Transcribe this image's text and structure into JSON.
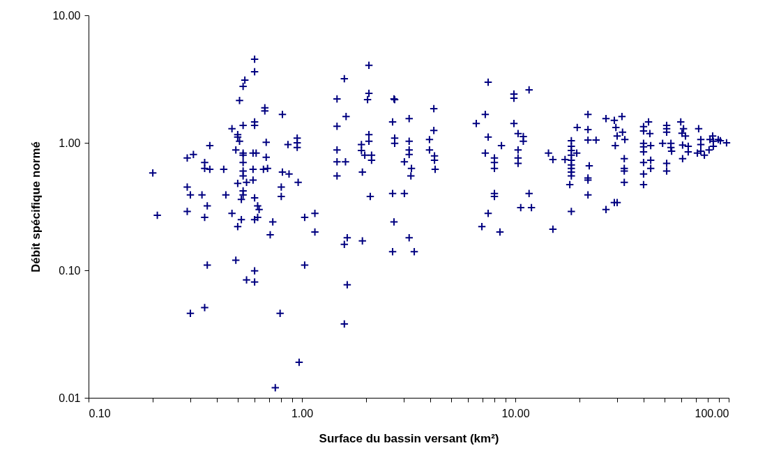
{
  "chart_data": {
    "type": "scatter",
    "xlabel": "Surface du bassin versant (km²)",
    "ylabel": "Débit spécifique normé",
    "log": "xy",
    "grid": false,
    "marker": "cross",
    "legend": false,
    "xlim": [
      0.1,
      100
    ],
    "ylim": [
      0.01,
      10
    ],
    "xticks": [
      {
        "value": 0.1,
        "label": "0.10"
      },
      {
        "value": 0.2,
        "label": null
      },
      {
        "value": 0.3,
        "label": null
      },
      {
        "value": 0.4,
        "label": null
      },
      {
        "value": 0.5,
        "label": null
      },
      {
        "value": 0.6,
        "label": null
      },
      {
        "value": 0.7,
        "label": null
      },
      {
        "value": 0.8,
        "label": null
      },
      {
        "value": 0.9,
        "label": null
      },
      {
        "value": 1,
        "label": "1.00"
      },
      {
        "value": 2,
        "label": null
      },
      {
        "value": 3,
        "label": null
      },
      {
        "value": 4,
        "label": null
      },
      {
        "value": 5,
        "label": null
      },
      {
        "value": 6,
        "label": null
      },
      {
        "value": 7,
        "label": null
      },
      {
        "value": 8,
        "label": null
      },
      {
        "value": 9,
        "label": null
      },
      {
        "value": 10,
        "label": "10.00"
      },
      {
        "value": 20,
        "label": null
      },
      {
        "value": 30,
        "label": null
      },
      {
        "value": 40,
        "label": null
      },
      {
        "value": 50,
        "label": null
      },
      {
        "value": 60,
        "label": null
      },
      {
        "value": 70,
        "label": null
      },
      {
        "value": 80,
        "label": null
      },
      {
        "value": 90,
        "label": null
      },
      {
        "value": 100,
        "label": "100.00"
      }
    ],
    "yticks": [
      {
        "value": 0.01,
        "label": "0.01"
      },
      {
        "value": 0.1,
        "label": "0.10"
      },
      {
        "value": 1,
        "label": "1.00"
      },
      {
        "value": 10,
        "label": "10.00"
      }
    ],
    "series": [
      {
        "color": "#000080",
        "x": [
          0.6,
          0.6,
          0.54,
          0.53,
          0.51,
          0.67,
          0.67,
          0.81,
          0.6,
          0.6,
          0.53,
          0.47,
          0.5,
          0.5,
          0.51,
          0.68,
          0.86,
          0.95,
          0.95,
          0.95,
          0.37,
          0.49,
          0.53,
          0.53,
          0.59,
          0.61,
          0.68,
          0.29,
          0.31,
          0.35,
          0.35,
          0.37,
          0.43,
          0.53,
          0.53,
          0.53,
          0.59,
          0.66,
          0.69,
          0.81,
          0.87,
          0.96,
          0.2,
          0.59,
          0.5,
          0.55,
          0.53,
          0.29,
          0.3,
          0.34,
          0.44,
          0.53,
          0.52,
          0.6,
          0.8,
          0.8,
          0.36,
          0.62,
          0.63,
          0.29,
          0.21,
          0.35,
          0.47,
          0.52,
          0.6,
          0.62,
          0.5,
          0.73,
          0.71,
          1.03,
          1.15,
          1.15,
          0.36,
          0.49,
          0.6,
          0.55,
          0.6,
          1.03,
          0.3,
          0.35,
          0.79,
          0.97,
          0.75,
          2.06,
          1.58,
          7.46,
          11.6,
          2.06,
          9.85,
          9.85,
          1.46,
          2.03,
          2.7,
          2.72,
          4.15,
          7.23,
          1.61,
          3.18,
          2.66,
          6.56,
          9.85,
          1.46,
          4.15,
          2.06,
          2.06,
          2.72,
          2.72,
          3.18,
          3.96,
          7.46,
          10.3,
          10.9,
          10.9,
          8.61,
          1.9,
          1.9,
          1.46,
          3.18,
          3.96,
          7.23,
          10.3,
          1.97,
          2.12,
          3.18,
          4.18,
          1.46,
          1.6,
          2.12,
          3.02,
          4.18,
          7.98,
          7.98,
          7.98,
          10.3,
          10.3,
          1.92,
          3.26,
          4.21,
          1.46,
          3.24,
          2.66,
          3.02,
          2.09,
          7.98,
          7.98,
          11.6,
          7.46,
          10.6,
          11.9,
          6.97,
          8.47,
          2.7,
          1.63,
          1.58,
          1.92,
          3.18,
          2.66,
          3.36,
          1.63,
          1.58,
          21.9,
          26.6,
          29.1,
          31.6,
          19.5,
          21.9,
          18.3,
          18.3,
          18.3,
          19.4,
          21.9,
          23.9,
          14.3,
          15.0,
          17.1,
          18.3,
          18.3,
          18.3,
          18.3,
          18.3,
          18.3,
          22.2,
          18.0,
          21.9,
          21.9,
          21.9,
          18.3,
          15.0,
          26.6,
          29.1,
          30.0,
          29.6,
          31.8,
          30.0,
          32.6,
          29.4,
          32.4,
          32.4,
          32.4,
          32.4,
          39.9,
          42.1,
          39.9,
          42.7,
          39.9,
          39.9,
          43.1,
          39.9,
          39.9,
          43.1,
          39.9,
          43.1,
          39.9,
          51.2,
          51.2,
          51.2,
          49.0,
          53.6,
          53.6,
          54.0,
          51.2,
          51.2,
          59.6,
          61.4,
          60.4,
          62.7,
          60.8,
          64.6,
          64.6,
          60.8,
          72.3,
          74.0,
          74.0,
          74.0,
          76.9,
          81.7,
          84.1,
          84.7,
          91.4,
          97.7,
          89.3,
          80.9,
          84.7,
          71.3
        ],
        "values": [
          4.53,
          3.61,
          3.1,
          2.77,
          2.15,
          1.88,
          1.78,
          1.67,
          1.46,
          1.37,
          1.37,
          1.29,
          1.16,
          1.11,
          1.03,
          1.01,
          0.97,
          1.09,
          1.0,
          0.92,
          0.95,
          0.88,
          0.83,
          0.8,
          0.83,
          0.83,
          0.77,
          0.76,
          0.81,
          0.7,
          0.63,
          0.62,
          0.62,
          0.7,
          0.6,
          0.55,
          0.62,
          0.62,
          0.63,
          0.59,
          0.57,
          0.49,
          0.58,
          0.51,
          0.48,
          0.49,
          0.42,
          0.45,
          0.39,
          0.39,
          0.39,
          0.39,
          0.36,
          0.37,
          0.45,
          0.38,
          0.32,
          0.32,
          0.3,
          0.29,
          0.27,
          0.26,
          0.28,
          0.25,
          0.25,
          0.26,
          0.22,
          0.24,
          0.19,
          0.26,
          0.28,
          0.2,
          0.11,
          0.12,
          0.099,
          0.084,
          0.081,
          0.11,
          0.046,
          0.051,
          0.046,
          0.019,
          0.012,
          4.05,
          3.18,
          2.99,
          2.6,
          2.44,
          2.41,
          2.24,
          2.21,
          2.18,
          2.21,
          2.18,
          1.85,
          1.67,
          1.61,
          1.55,
          1.46,
          1.42,
          1.42,
          1.35,
          1.25,
          1.16,
          1.03,
          1.09,
          0.99,
          1.03,
          1.06,
          1.11,
          1.18,
          1.12,
          1.03,
          0.95,
          0.97,
          0.87,
          0.88,
          0.88,
          0.88,
          0.83,
          0.88,
          0.8,
          0.8,
          0.81,
          0.79,
          0.71,
          0.71,
          0.73,
          0.71,
          0.73,
          0.76,
          0.7,
          0.63,
          0.76,
          0.69,
          0.59,
          0.63,
          0.62,
          0.55,
          0.55,
          0.4,
          0.4,
          0.38,
          0.4,
          0.38,
          0.4,
          0.28,
          0.31,
          0.31,
          0.22,
          0.2,
          0.24,
          0.18,
          0.16,
          0.17,
          0.18,
          0.14,
          0.14,
          0.077,
          0.038,
          1.67,
          1.55,
          1.5,
          1.61,
          1.32,
          1.27,
          1.04,
          0.94,
          0.87,
          0.83,
          1.05,
          1.05,
          0.83,
          0.74,
          0.74,
          0.8,
          0.73,
          0.67,
          0.63,
          0.59,
          0.55,
          0.66,
          0.47,
          0.53,
          0.51,
          0.39,
          0.29,
          0.21,
          0.3,
          0.34,
          0.34,
          1.32,
          1.21,
          1.13,
          1.06,
          0.95,
          0.75,
          0.63,
          0.6,
          0.49,
          1.34,
          1.46,
          1.24,
          1.18,
          0.99,
          0.93,
          0.95,
          0.85,
          0.7,
          0.73,
          0.57,
          0.63,
          0.47,
          1.37,
          1.29,
          1.21,
          0.99,
          0.99,
          0.92,
          0.86,
          0.69,
          0.6,
          1.46,
          1.29,
          1.19,
          1.13,
          0.96,
          0.94,
          0.85,
          0.75,
          1.29,
          1.06,
          0.97,
          0.86,
          0.8,
          1.06,
          1.13,
          1.03,
          1.04,
          1.0,
          1.06,
          0.88,
          0.94,
          0.83
        ]
      }
    ]
  }
}
